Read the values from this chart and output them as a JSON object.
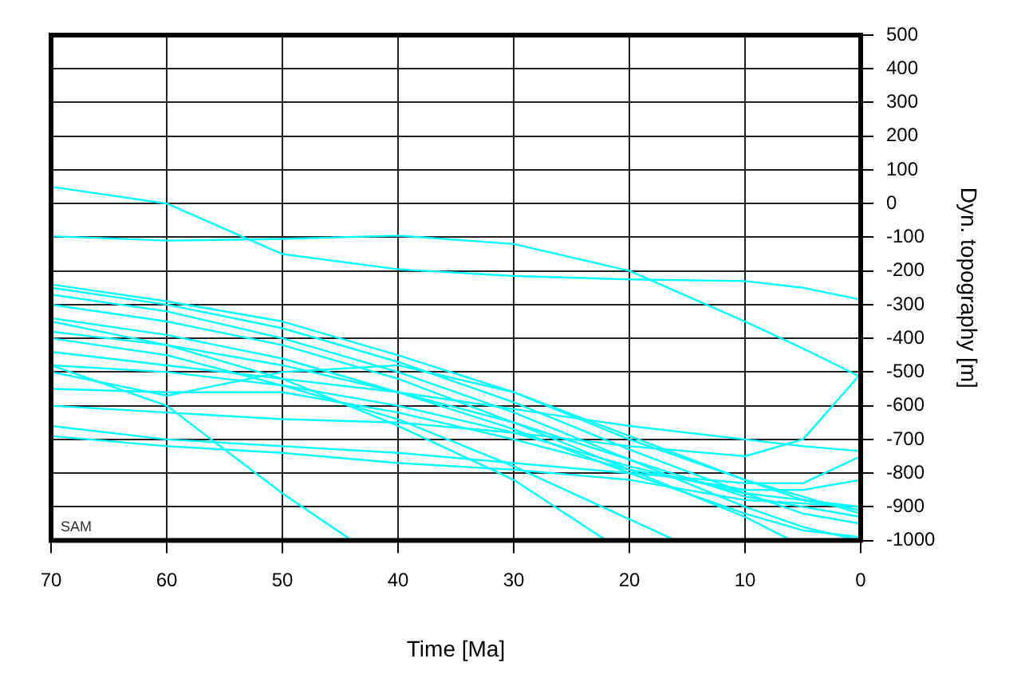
{
  "chart_data": {
    "type": "line",
    "xlabel": "Time [Ma]",
    "ylabel": "Dyn. topography [m]",
    "annotations": [
      "SAM"
    ],
    "x": [
      70,
      60,
      50,
      40,
      30,
      20,
      10,
      5,
      0
    ],
    "xlim": [
      70,
      0
    ],
    "xticks": [
      70,
      60,
      50,
      40,
      30,
      20,
      10,
      0
    ],
    "ylim": [
      -1000,
      500
    ],
    "yticks": [
      -1000,
      -900,
      -800,
      -700,
      -600,
      -500,
      -400,
      -300,
      -200,
      -100,
      0,
      100,
      200,
      300,
      400,
      500
    ],
    "grid": true,
    "legend": false,
    "marker": "none",
    "line_style": "solid",
    "series": [
      {
        "color": "#00ffff",
        "values": [
          50,
          0,
          -150,
          -195,
          -215,
          -225,
          -230,
          -250,
          -285
        ]
      },
      {
        "color": "#00ffff",
        "values": [
          -97,
          -110,
          -105,
          -95,
          -120,
          -200,
          -350,
          -430,
          -515
        ]
      },
      {
        "color": "#00ffff",
        "values": [
          -240,
          -290,
          -350,
          -450,
          -560,
          -690,
          -820,
          -870,
          -920
        ]
      },
      {
        "color": "#00ffff",
        "values": [
          -250,
          -300,
          -370,
          -470,
          -590,
          -730,
          -860,
          -920,
          -950
        ]
      },
      {
        "color": "#00ffff",
        "values": [
          -270,
          -320,
          -400,
          -500,
          -620,
          -760,
          -900,
          -960,
          -1000
        ]
      },
      {
        "color": "#00ffff",
        "x": [
          70,
          60,
          50,
          40,
          30,
          20,
          10,
          6
        ],
        "values": [
          -300,
          -350,
          -420,
          -520,
          -650,
          -790,
          -930,
          -1000
        ]
      },
      {
        "color": "#00ffff",
        "values": [
          -340,
          -390,
          -460,
          -560,
          -670,
          -800,
          -920,
          -970,
          -990
        ]
      },
      {
        "color": "#00ffff",
        "values": [
          -380,
          -420,
          -480,
          -560,
          -650,
          -760,
          -870,
          -900,
          -930
        ]
      },
      {
        "color": "#00ffff",
        "values": [
          -440,
          -480,
          -520,
          -560,
          -610,
          -660,
          -700,
          -720,
          -735
        ]
      },
      {
        "color": "#00ffff",
        "values": [
          -480,
          -500,
          -540,
          -600,
          -680,
          -780,
          -860,
          -880,
          -900
        ]
      },
      {
        "color": "#00ffff",
        "values": [
          -500,
          -570,
          -500,
          -480,
          -560,
          -700,
          -820,
          -880,
          -910
        ]
      },
      {
        "color": "#00ffff",
        "values": [
          -550,
          -560,
          -560,
          -620,
          -700,
          -790,
          -850,
          -850,
          -820
        ]
      },
      {
        "color": "#00ffff",
        "values": [
          -600,
          -620,
          -640,
          -650,
          -680,
          -720,
          -750,
          -700,
          -505
        ]
      },
      {
        "color": "#00ffff",
        "values": [
          -660,
          -700,
          -720,
          -740,
          -770,
          -800,
          -830,
          -830,
          -750
        ]
      },
      {
        "color": "#00ffff",
        "values": [
          -690,
          -720,
          -740,
          -770,
          -790,
          -820,
          -880,
          -890,
          -900
        ]
      },
      {
        "color": "#00ffff",
        "x": [
          70,
          60,
          50,
          44
        ],
        "values": [
          -480,
          -600,
          -860,
          -1000
        ]
      },
      {
        "color": "#00ffff",
        "x": [
          70,
          60,
          50,
          40,
          30,
          22
        ],
        "values": [
          -350,
          -420,
          -520,
          -660,
          -820,
          -1000
        ]
      },
      {
        "color": "#00ffff",
        "x": [
          70,
          60,
          50,
          40,
          30,
          16
        ],
        "values": [
          -400,
          -450,
          -540,
          -640,
          -780,
          -1000
        ]
      }
    ]
  }
}
